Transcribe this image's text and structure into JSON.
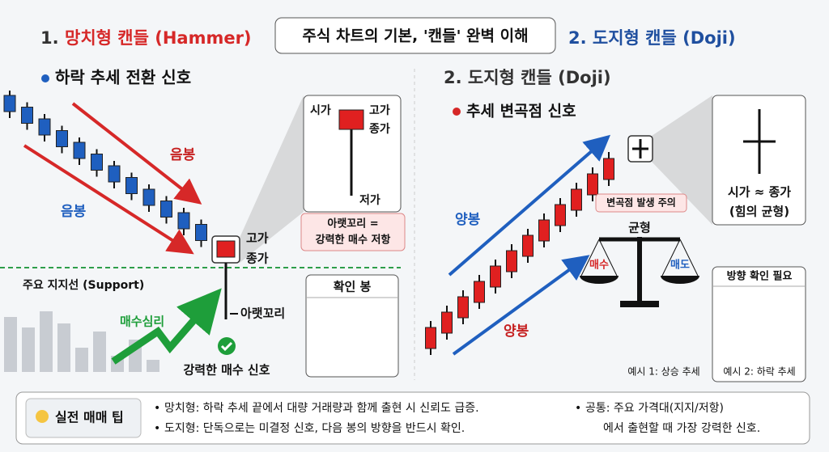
{
  "header": {
    "title": "주식 차트의 기본, '캔들' 완벽 이해"
  },
  "hammer": {
    "number": "1.",
    "heading": "망치형 캔들 (Hammer)",
    "subtitle": "하락 추세 전환 신호",
    "arrow_labels": [
      "음봉",
      "음봉"
    ],
    "high": "고가",
    "close": "종가",
    "lower_shadow": "아랫꼬리",
    "support": "주요 지지선 (Support)",
    "buying": "매수심리",
    "signal": "강력한 매수 신호",
    "inset": {
      "open": "시가",
      "high": "고가",
      "close": "종가",
      "low": "저가"
    },
    "note": [
      "아랫꼬리 =",
      "강력한 매수 저항"
    ],
    "confirm": "확인 봉"
  },
  "doji": {
    "top_heading": "2. 도지형 캔들 (Doji)",
    "heading": "2. 도지형 캔들 (Doji)",
    "subtitle": "추세 변곡점 신호",
    "arrow_labels": [
      "양봉",
      "양봉"
    ],
    "warning": "변곡점 발생 주의",
    "balance": "균형",
    "buy": "매수",
    "sell": "매도",
    "inset": [
      "시가 ≈ 종가",
      "(힘의 균형)"
    ],
    "direction": "방향 확인 필요",
    "example1": "예시 1: 상승 추세",
    "example2": "예시 2: 하락 추세"
  },
  "tips": {
    "title": "실전 매매 팁",
    "items": [
      "망치형: 하락 추세 끝에서 대량 거래량과 함께 출현 시 신뢰도 급증.",
      "도지형: 단독으로는 미결정 신호, 다음 봉의 방향을 반드시 확인.",
      "공통: 주요 가격대(지지/저항)",
      "에서 출현할 때 가장 강력한 신호."
    ]
  }
}
